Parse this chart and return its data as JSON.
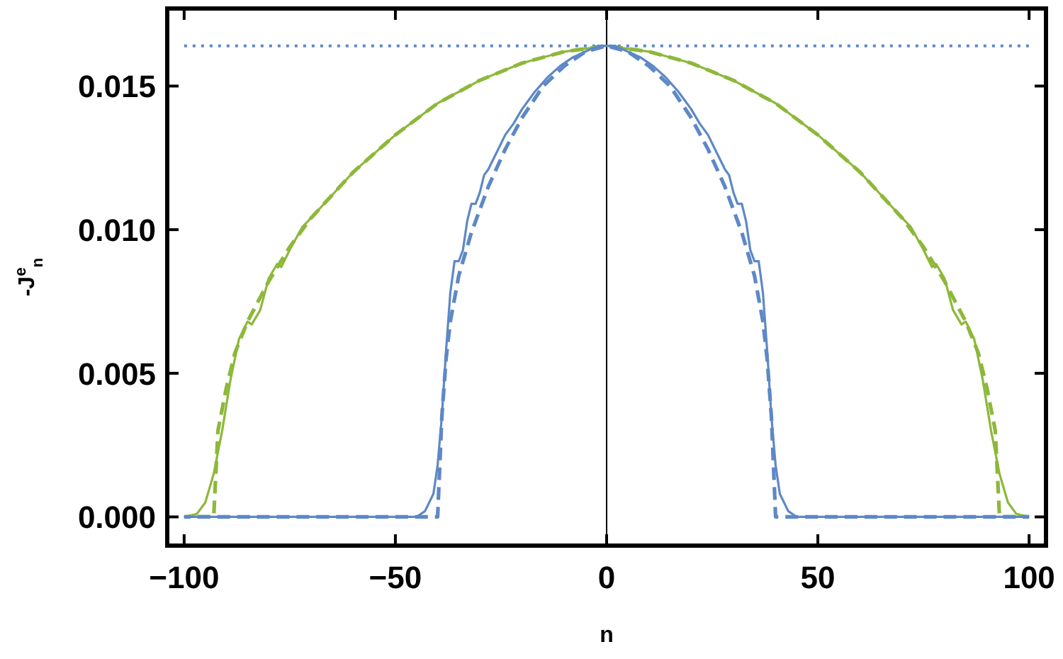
{
  "chart_data": {
    "type": "line",
    "xlabel": "n",
    "ylabel": "-J$^{e}$$_{n}$",
    "xlim": [
      -104,
      104
    ],
    "ylim": [
      -0.001,
      0.0177
    ],
    "xticks": [
      {
        "value": -100,
        "label": "−100"
      },
      {
        "value": -50,
        "label": "−50"
      },
      0,
      50,
      100
    ],
    "yticks": [
      {
        "value": 0,
        "label": "0.000"
      },
      {
        "value": 0.005,
        "label": "0.005"
      },
      {
        "value": 0.01,
        "label": "0.010"
      },
      {
        "value": 0.015,
        "label": "0.015"
      }
    ],
    "grid": false,
    "ref_lines": [
      {
        "axis": "y",
        "value": 0.0164,
        "color": "#5e88c6",
        "line_style": "dotted"
      },
      {
        "axis": "x",
        "value": 0,
        "color": "#000000",
        "line_style": "solid"
      }
    ],
    "series": [
      {
        "color": "#5e88c6",
        "line_style": "solid",
        "x": [
          -100,
          -45,
          -43,
          -41,
          -40,
          -39,
          -38,
          -37,
          -36,
          -35,
          -34,
          -33,
          -32,
          -31,
          -30,
          -29,
          -28,
          -26,
          -24,
          -22,
          -20,
          -17,
          -14,
          -11,
          -8,
          -5,
          -2,
          0,
          2,
          5,
          8,
          11,
          14,
          17,
          20,
          22,
          24,
          26,
          28,
          29,
          30,
          31,
          32,
          33,
          34,
          35,
          36,
          37,
          38,
          39,
          40,
          41,
          43,
          45,
          100
        ],
        "values": [
          0,
          0,
          0.0002,
          0.0008,
          0.0018,
          0.0035,
          0.0058,
          0.0078,
          0.0089,
          0.0089,
          0.0093,
          0.0103,
          0.0109,
          0.0109,
          0.0113,
          0.0119,
          0.0121,
          0.0127,
          0.0133,
          0.0137,
          0.0142,
          0.0148,
          0.0153,
          0.0157,
          0.016,
          0.0162,
          0.0164,
          0.0164,
          0.0164,
          0.0162,
          0.016,
          0.0157,
          0.0153,
          0.0148,
          0.0142,
          0.0137,
          0.0133,
          0.0127,
          0.0121,
          0.0119,
          0.0113,
          0.0109,
          0.0109,
          0.0103,
          0.0093,
          0.0089,
          0.0089,
          0.0078,
          0.0058,
          0.0035,
          0.0018,
          0.0008,
          0.0002,
          0,
          0
        ]
      },
      {
        "color": "#5e88c6",
        "line_style": "dashed",
        "x": [
          -100,
          -40,
          -39,
          -38,
          -37,
          -35,
          -32,
          -28,
          -24,
          -20,
          -15,
          -10,
          -5,
          0,
          5,
          10,
          15,
          20,
          24,
          28,
          32,
          35,
          37,
          38,
          39,
          40,
          100
        ],
        "values": [
          0,
          0,
          0.0035,
          0.0055,
          0.0068,
          0.0084,
          0.0099,
          0.0115,
          0.0128,
          0.0139,
          0.015,
          0.0157,
          0.0162,
          0.0164,
          0.0162,
          0.0157,
          0.015,
          0.0139,
          0.0128,
          0.0115,
          0.0099,
          0.0084,
          0.0068,
          0.0055,
          0.0035,
          0,
          0
        ]
      },
      {
        "color": "#8db83a",
        "line_style": "solid",
        "x": [
          -100,
          -97,
          -95,
          -93,
          -91,
          -89,
          -87,
          -85,
          -84,
          -82,
          -80,
          -78,
          -77,
          -75,
          -72,
          -70,
          -65,
          -60,
          -50,
          -40,
          -30,
          -20,
          -10,
          0,
          10,
          20,
          30,
          40,
          50,
          60,
          65,
          70,
          72,
          75,
          77,
          78,
          80,
          82,
          84,
          85,
          87,
          89,
          91,
          93,
          95,
          97,
          100
        ],
        "values": [
          0,
          0.0001,
          0.0005,
          0.0015,
          0.003,
          0.0048,
          0.0062,
          0.0068,
          0.0067,
          0.0072,
          0.0083,
          0.0088,
          0.0087,
          0.0093,
          0.0101,
          0.0104,
          0.0112,
          0.012,
          0.0133,
          0.0144,
          0.0152,
          0.0158,
          0.0162,
          0.0164,
          0.0162,
          0.0158,
          0.0152,
          0.0144,
          0.0133,
          0.012,
          0.0112,
          0.0104,
          0.0101,
          0.0093,
          0.0087,
          0.0088,
          0.0083,
          0.0072,
          0.0067,
          0.0068,
          0.0062,
          0.0048,
          0.003,
          0.0015,
          0.0005,
          0.0001,
          0
        ]
      },
      {
        "color": "#8db83a",
        "line_style": "dashed",
        "x": [
          -100,
          -93,
          -92,
          -90,
          -88,
          -85,
          -80,
          -75,
          -70,
          -60,
          -50,
          -40,
          -30,
          -20,
          -10,
          0,
          10,
          20,
          30,
          40,
          50,
          60,
          70,
          75,
          80,
          85,
          88,
          90,
          92,
          93,
          100
        ],
        "values": [
          0,
          0,
          0.003,
          0.0045,
          0.0057,
          0.0068,
          0.0082,
          0.0094,
          0.0104,
          0.012,
          0.0133,
          0.0144,
          0.0152,
          0.0158,
          0.0162,
          0.0164,
          0.0162,
          0.0158,
          0.0152,
          0.0144,
          0.0133,
          0.012,
          0.0104,
          0.0094,
          0.0082,
          0.0068,
          0.0057,
          0.0045,
          0.003,
          0,
          0
        ]
      }
    ]
  }
}
